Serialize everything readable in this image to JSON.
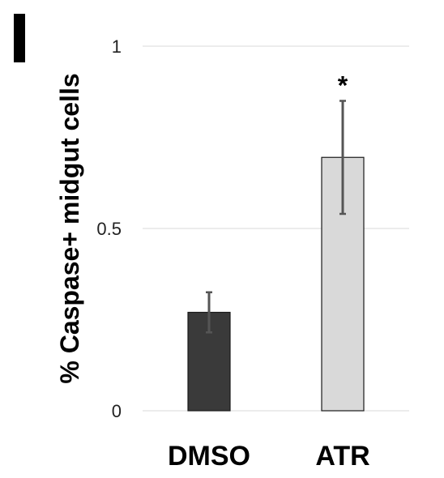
{
  "panel_label": "I",
  "chart_data": {
    "type": "bar",
    "categories": [
      "DMSO",
      "ATR"
    ],
    "values": [
      0.27,
      0.695
    ],
    "errors": [
      0.055,
      0.155
    ],
    "significance": [
      "",
      "*"
    ],
    "ylabel": "% Caspase+ midgut cells",
    "yticks": [
      "0",
      "0.5",
      "1"
    ],
    "ylim": [
      0,
      1
    ],
    "grid": true,
    "colors": {
      "DMSO": "#3a3a3a",
      "ATR": "#d9d9d9"
    }
  }
}
